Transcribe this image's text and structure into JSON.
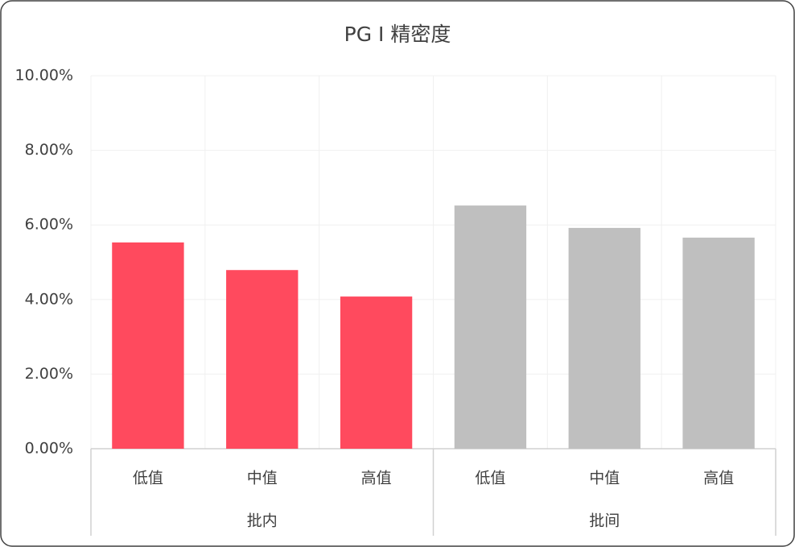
{
  "chart_data": {
    "type": "bar",
    "title": "PG I 精密度",
    "groups": [
      {
        "name": "批内",
        "color": "#ff4a5e",
        "categories": [
          "低值",
          "中值",
          "高值"
        ],
        "values": [
          5.53,
          4.79,
          4.08
        ]
      },
      {
        "name": "批间",
        "color": "#bfbfbf",
        "categories": [
          "低值",
          "中值",
          "高值"
        ],
        "values": [
          6.52,
          5.92,
          5.66
        ]
      }
    ],
    "ylim": [
      0,
      10
    ],
    "yticks": [
      {
        "value": 0,
        "label": "0.00%"
      },
      {
        "value": 2,
        "label": "2.00%"
      },
      {
        "value": 4,
        "label": "4.00%"
      },
      {
        "value": 6,
        "label": "6.00%"
      },
      {
        "value": 8,
        "label": "8.00%"
      },
      {
        "value": 10,
        "label": "10.00%"
      }
    ],
    "grid": true
  }
}
